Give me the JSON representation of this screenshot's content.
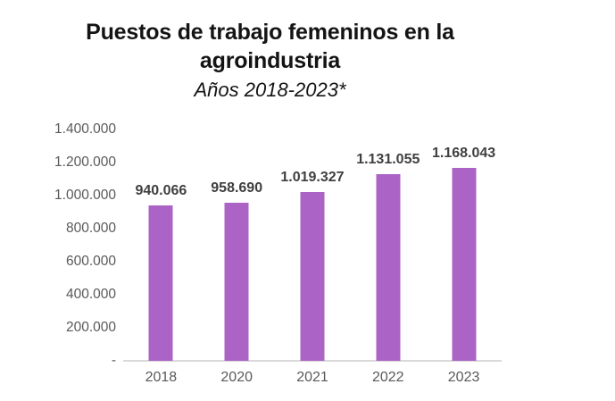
{
  "chart": {
    "title_line1": "Puestos de trabajo femeninos en la",
    "title_line2": "agroindustria",
    "subtitle": "Años 2018-2023*"
  },
  "chart_data": {
    "type": "bar",
    "title": "Puestos de trabajo femeninos en la agroindustria",
    "subtitle": "Años 2018-2023*",
    "categories": [
      "2018",
      "2020",
      "2021",
      "2022",
      "2023"
    ],
    "values": [
      940066,
      958690,
      1019327,
      1131055,
      1168043
    ],
    "value_labels": [
      "940.066",
      "958.690",
      "1.019.327",
      "1.131.055",
      "1.168.043"
    ],
    "xlabel": "",
    "ylabel": "",
    "ylim": [
      0,
      1400000
    ],
    "yticks": [
      {
        "value": 1400000,
        "label": "1.400.000"
      },
      {
        "value": 1200000,
        "label": "1.200.000"
      },
      {
        "value": 1000000,
        "label": "1.000.000"
      },
      {
        "value": 800000,
        "label": "800.000"
      },
      {
        "value": 600000,
        "label": "600.000"
      },
      {
        "value": 400000,
        "label": "400.000"
      },
      {
        "value": 200000,
        "label": "200.000"
      },
      {
        "value": 0,
        "label": "-"
      }
    ],
    "grid": false,
    "legend": false,
    "colors": {
      "bar": "#ab64c6",
      "value_label": "#3f3f3f",
      "axis_label": "#595959",
      "baseline": "#d9d9d9",
      "title": "#141414"
    }
  }
}
